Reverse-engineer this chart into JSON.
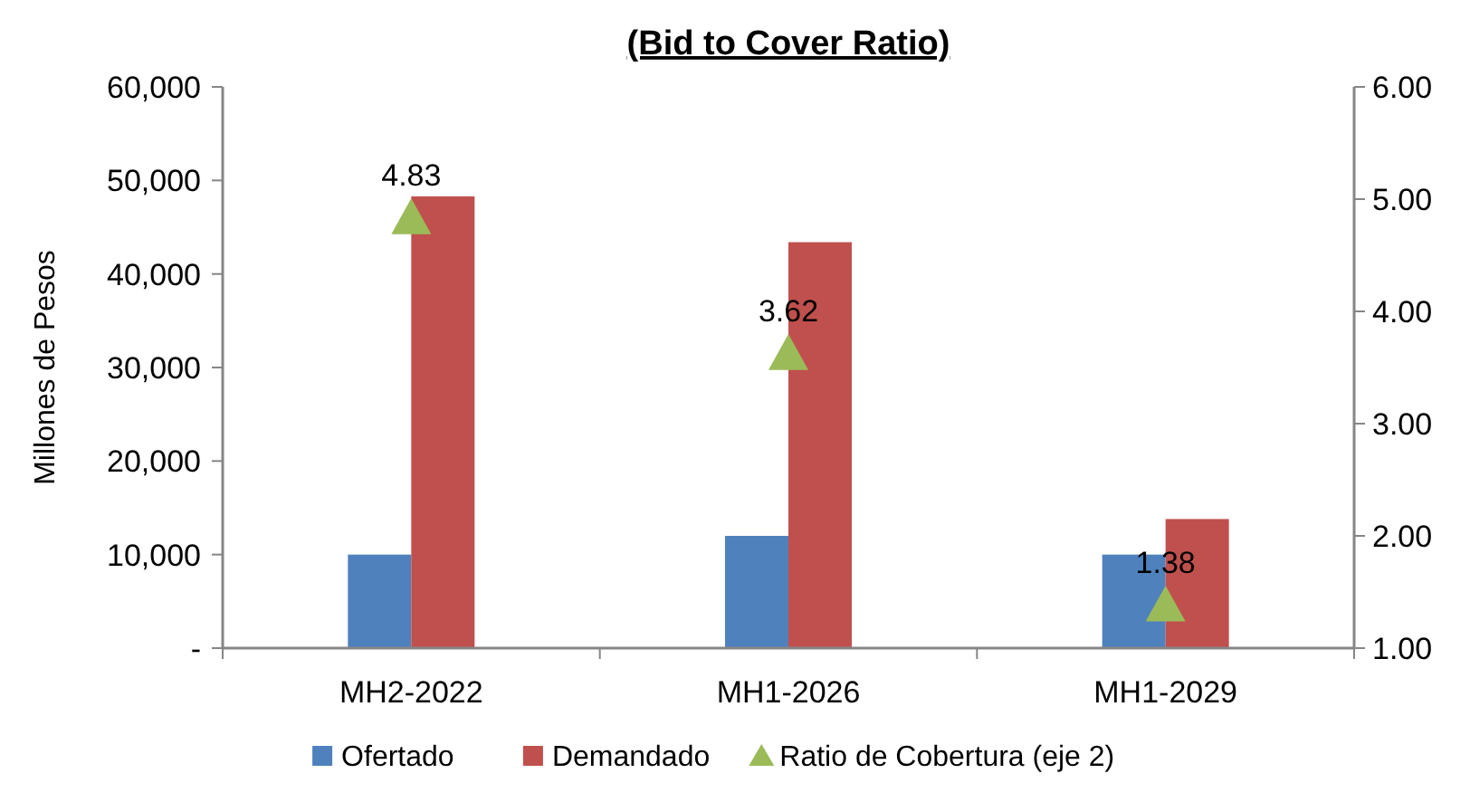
{
  "chart_data": {
    "type": "bar",
    "title": "(Bid to Cover Ratio)",
    "ylabel": "Millones de Pesos",
    "categories": [
      "MH2-2022",
      "MH1-2026",
      "MH1-2029"
    ],
    "series": [
      {
        "name": "Ofertado",
        "color": "#4f81bd",
        "values": [
          10000,
          12000,
          10000
        ]
      },
      {
        "name": "Demandado",
        "color": "#c0504d",
        "values": [
          48300,
          43400,
          13800
        ]
      },
      {
        "name": "Ratio de Cobertura (eje 2)",
        "type": "scatter",
        "axis": "y2",
        "marker": "triangle",
        "color": "#9bbb59",
        "values": [
          4.83,
          3.62,
          1.38
        ],
        "value_labels": [
          "4.83",
          "3.62",
          "1.38"
        ]
      }
    ],
    "ylim": [
      0,
      60000
    ],
    "yticks": [
      {
        "value": 0,
        "label": "-"
      },
      {
        "value": 10000,
        "label": "10,000"
      },
      {
        "value": 20000,
        "label": "20,000"
      },
      {
        "value": 30000,
        "label": "30,000"
      },
      {
        "value": 40000,
        "label": "40,000"
      },
      {
        "value": 50000,
        "label": "50,000"
      },
      {
        "value": 60000,
        "label": "60,000"
      }
    ],
    "y2lim": [
      1,
      6
    ],
    "y2ticks": [
      {
        "value": 1,
        "label": "1.00"
      },
      {
        "value": 2,
        "label": "2.00"
      },
      {
        "value": 3,
        "label": "3.00"
      },
      {
        "value": 4,
        "label": "4.00"
      },
      {
        "value": 5,
        "label": "5.00"
      },
      {
        "value": 6,
        "label": "6.00"
      }
    ],
    "grid": false,
    "legend": "bottom"
  }
}
